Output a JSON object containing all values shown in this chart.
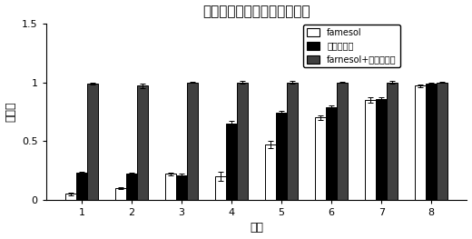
{
  "title": "法尼醇与苯醚甲环唑增效作用",
  "xlabel": "组别",
  "ylabel": "抑制率",
  "categories": [
    "1",
    "2",
    "3",
    "4",
    "5",
    "6",
    "7",
    "8"
  ],
  "famesol": [
    0.05,
    0.1,
    0.22,
    0.2,
    0.47,
    0.7,
    0.85,
    0.97
  ],
  "triazole": [
    0.23,
    0.22,
    0.21,
    0.65,
    0.74,
    0.79,
    0.86,
    0.99
  ],
  "combo": [
    0.99,
    0.97,
    1.0,
    1.0,
    1.0,
    1.0,
    1.0,
    1.0
  ],
  "famesol_err": [
    0.01,
    0.01,
    0.01,
    0.04,
    0.03,
    0.02,
    0.02,
    0.01
  ],
  "triazole_err": [
    0.01,
    0.01,
    0.01,
    0.02,
    0.02,
    0.01,
    0.01,
    0.005
  ],
  "combo_err": [
    0.01,
    0.02,
    0.005,
    0.01,
    0.01,
    0.005,
    0.01,
    0.005
  ],
  "famesol_color": "#ffffff",
  "triazole_color": "#000000",
  "combo_color": "#404040",
  "bar_edge_color": "#000000",
  "ylim": [
    0,
    1.5
  ],
  "yticks": [
    0.0,
    0.5,
    1.0,
    1.5
  ],
  "legend_labels": [
    "famesol",
    "苯醚甲环唑",
    "farnesol+苯醚甲环唑"
  ],
  "background_color": "#ffffff",
  "title_fontsize": 11,
  "label_fontsize": 9,
  "tick_fontsize": 8,
  "legend_fontsize": 7,
  "bar_width": 0.22
}
